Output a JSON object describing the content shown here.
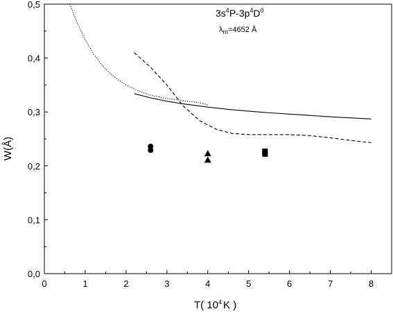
{
  "chart_data": {
    "type": "line",
    "xlabel": "T( 10",
    "xlabel_sup": "4",
    "xlabel_end": "K )",
    "ylabel": "W(Å)",
    "xlim": [
      0,
      8.5
    ],
    "ylim": [
      0,
      0.5
    ],
    "x_ticks": [
      0,
      1,
      2,
      3,
      4,
      5,
      6,
      7,
      8
    ],
    "x_tick_labels": [
      "0",
      "1",
      "2",
      "3",
      "4",
      "5",
      "6",
      "7",
      "8"
    ],
    "y_ticks": [
      0,
      0.1,
      0.2,
      0.3,
      0.4,
      0.5
    ],
    "y_tick_labels": [
      "0,0",
      "0,1",
      "0,2",
      "0,3",
      "0,4",
      "0,5"
    ],
    "grid": false,
    "annotation": {
      "part1": "3s",
      "sup1": "4",
      "part2": "P-3p",
      "sup2": "4",
      "part3": "D",
      "sup3": "0",
      "lambda_symbol": "λ",
      "lambda_sub": "m",
      "lambda_value": "=4652 Å"
    },
    "series": [
      {
        "style": "solid",
        "x": [
          2.2,
          2.6,
          3.0,
          3.4,
          4.0,
          4.6,
          5.4,
          6.2,
          7.0,
          8.0
        ],
        "y": [
          0.334,
          0.326,
          0.32,
          0.315,
          0.309,
          0.304,
          0.299,
          0.295,
          0.291,
          0.287
        ]
      },
      {
        "style": "dashed",
        "x": [
          2.2,
          2.6,
          3.0,
          3.4,
          3.8,
          4.2,
          4.6,
          5.0,
          5.6,
          6.0,
          6.5,
          7.0,
          7.5,
          8.0
        ],
        "y": [
          0.41,
          0.383,
          0.35,
          0.311,
          0.284,
          0.268,
          0.26,
          0.258,
          0.258,
          0.258,
          0.256,
          0.252,
          0.247,
          0.243
        ]
      },
      {
        "style": "dotted",
        "x": [
          0.62,
          0.8,
          1.0,
          1.2,
          1.4,
          1.6,
          1.8,
          2.0,
          2.3,
          2.6,
          3.0,
          3.4,
          3.8,
          4.0
        ],
        "y": [
          0.5,
          0.466,
          0.434,
          0.408,
          0.388,
          0.372,
          0.36,
          0.35,
          0.339,
          0.331,
          0.325,
          0.321,
          0.317,
          0.313
        ]
      }
    ],
    "points": [
      {
        "marker": "circle",
        "x": 2.6,
        "y": 0.236
      },
      {
        "marker": "circle",
        "x": 2.6,
        "y": 0.229
      },
      {
        "marker": "triangle",
        "x": 4.0,
        "y": 0.223
      },
      {
        "marker": "triangle",
        "x": 4.0,
        "y": 0.211
      },
      {
        "marker": "square",
        "x": 5.4,
        "y": 0.227
      },
      {
        "marker": "square",
        "x": 5.4,
        "y": 0.222
      }
    ]
  }
}
